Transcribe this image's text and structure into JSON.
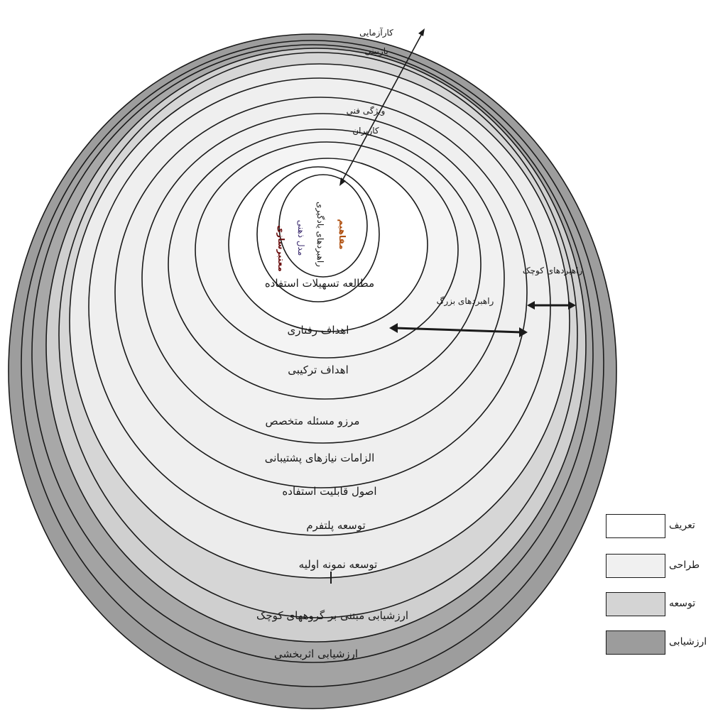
{
  "rings": [
    {
      "label": "ارزشیابی اثربخشی",
      "zone": "evaluation"
    },
    {
      "label": "ارزشیابی مبتنی بر گروههای کوچک",
      "zone": "evaluation"
    },
    {
      "label": "توسعه نمونه اولیه",
      "zone": "development"
    },
    {
      "label": "توسعه پلتفرم",
      "zone": "development"
    },
    {
      "label": "اصول قابلیت استفاده",
      "zone": "design"
    },
    {
      "label": "الزامات نیازهای پشتیبانی",
      "zone": "design"
    },
    {
      "label": "مرزو مسئله متخصص",
      "zone": "design"
    },
    {
      "label": "اهداف ترکیبی",
      "zone": "design"
    },
    {
      "label": "اهداف رفتاری",
      "zone": "definition"
    },
    {
      "label": "مطالعه تسهیلات استفاده",
      "zone": "definition"
    }
  ],
  "top_labels": [
    "کارآزمایی",
    "بازبینی",
    "ویژگی فنی",
    "کاربران"
  ],
  "core_labels": [
    "معتبرسازی",
    "مدل ذهنی",
    "راهبردهای یادگیری",
    "مفاهیم"
  ],
  "arrows": {
    "big_steps": "راهبردهای بزرگ",
    "small_steps": "راهبردهای کوچک"
  },
  "legend": [
    {
      "label": "تعریف",
      "color": "#ffffff"
    },
    {
      "label": "طراحی",
      "color": "#f0f0f0"
    },
    {
      "label": "توسعه",
      "color": "#d4d4d4"
    },
    {
      "label": "ارزشیابی",
      "color": "#9c9c9c"
    }
  ],
  "zone_colors": {
    "definition": "#ffffff",
    "design": "#efefef",
    "development": "#d6d6d6",
    "evaluation": "#9d9d9d"
  }
}
